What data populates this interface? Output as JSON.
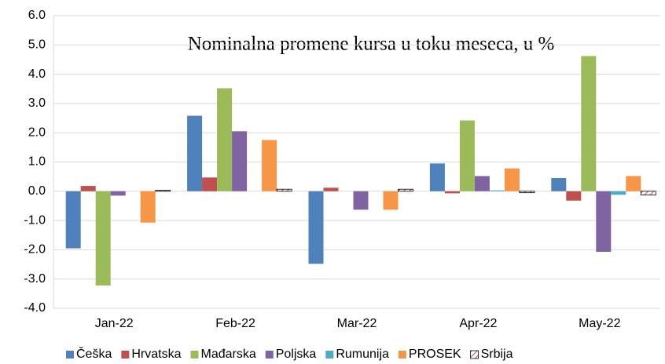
{
  "chart_data": {
    "type": "bar",
    "title": "Nominalna promene kursa u toku meseca, u %",
    "categories": [
      "Jan-22",
      "Feb-22",
      "Mar-22",
      "Apr-22",
      "May-22"
    ],
    "series": [
      {
        "name": "Češka",
        "color": "#4f81bd",
        "values": [
          -1.95,
          2.58,
          -2.48,
          0.95,
          0.45
        ]
      },
      {
        "name": "Hrvatska",
        "color": "#c0504d",
        "values": [
          0.18,
          0.47,
          0.12,
          -0.07,
          -0.32
        ]
      },
      {
        "name": "Mađarska",
        "color": "#9bbb59",
        "values": [
          -3.22,
          3.52,
          0.0,
          2.42,
          4.62
        ]
      },
      {
        "name": "Poljska",
        "color": "#8064a2",
        "values": [
          -0.15,
          2.05,
          -0.63,
          0.52,
          -2.07
        ]
      },
      {
        "name": "Rumunija",
        "color": "#4bacc6",
        "values": [
          0.0,
          0.0,
          0.0,
          0.03,
          -0.12
        ]
      },
      {
        "name": "PROSEK",
        "color": "#f79646",
        "values": [
          -1.07,
          1.75,
          -0.63,
          0.78,
          0.52
        ]
      },
      {
        "name": "Srbija",
        "color": "#c0504d",
        "hatch": true,
        "values": [
          0.03,
          0.07,
          0.07,
          -0.05,
          -0.13
        ]
      }
    ],
    "ylim": [
      -4,
      6
    ],
    "yticks": [
      {
        "value": -4,
        "label": "-4.0"
      },
      {
        "value": -3,
        "label": "-3.0"
      },
      {
        "value": -2,
        "label": "-2.0"
      },
      {
        "value": -1,
        "label": "-1.0"
      },
      {
        "value": 0,
        "label": "0.0"
      },
      {
        "value": 1,
        "label": "1.0"
      },
      {
        "value": 2,
        "label": "2.0"
      },
      {
        "value": 3,
        "label": "3.0"
      },
      {
        "value": 4,
        "label": "4.0"
      },
      {
        "value": 5,
        "label": "5.0"
      },
      {
        "value": 6,
        "label": "6.0"
      }
    ],
    "grid": true,
    "legend": "bottom"
  }
}
